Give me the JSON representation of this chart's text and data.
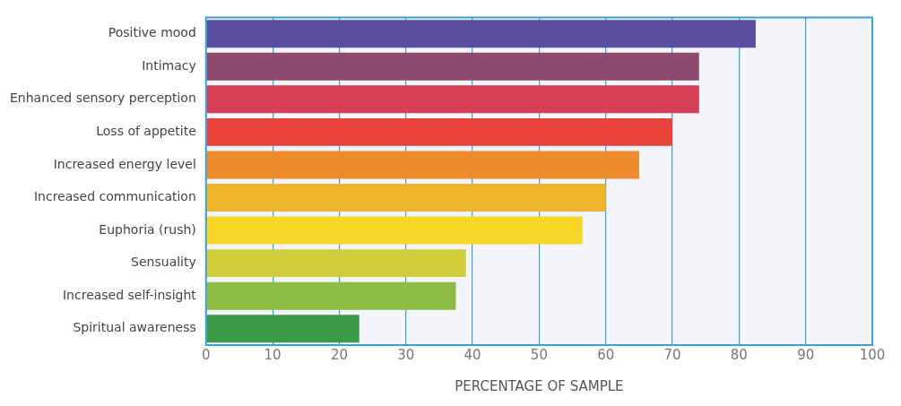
{
  "chart_data": {
    "type": "bar",
    "orientation": "horizontal",
    "xlabel": "PERCENTAGE OF SAMPLE",
    "categories": [
      "Positive mood",
      "Intimacy",
      "Enhanced sensory perception",
      "Loss of appetite",
      "Increased energy level",
      "Increased communication",
      "Euphoria (rush)",
      "Sensuality",
      "Increased self-insight",
      "Spiritual awareness"
    ],
    "values": [
      82.5,
      74,
      74,
      70,
      65,
      60,
      56.5,
      39,
      37.5,
      23
    ],
    "colors": [
      "#5a4f9e",
      "#8e4a6e",
      "#d63f55",
      "#e8423a",
      "#ec8a2c",
      "#edb52a",
      "#f8d628",
      "#cfce3a",
      "#8dbd45",
      "#3a9a48"
    ],
    "xlim": [
      0,
      100
    ],
    "xticks": [
      0,
      10,
      20,
      30,
      40,
      50,
      60,
      70,
      80,
      90,
      100
    ],
    "grid": "x",
    "legend": false
  }
}
